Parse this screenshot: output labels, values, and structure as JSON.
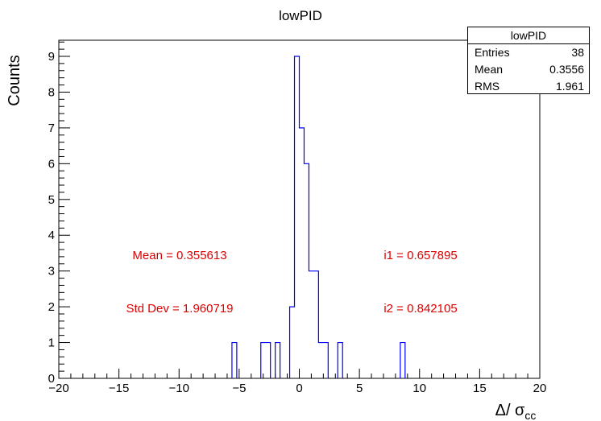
{
  "chart_data": {
    "type": "histogram",
    "title": "lowPID",
    "xlabel": "Δ/ σ",
    "xlabel_subscript": "cc",
    "ylabel": "Counts",
    "xlim": [
      -20,
      20
    ],
    "ylim": [
      0,
      9.45
    ],
    "x_ticks": [
      -20,
      -15,
      -10,
      -5,
      0,
      5,
      10,
      15,
      20
    ],
    "x_tick_labels": [
      "−20",
      "−15",
      "−10",
      "−5",
      "0",
      "5",
      "10",
      "15",
      "20"
    ],
    "y_ticks": [
      0,
      1,
      2,
      3,
      4,
      5,
      6,
      7,
      8,
      9
    ],
    "y_tick_labels": [
      "0",
      "1",
      "2",
      "3",
      "4",
      "5",
      "6",
      "7",
      "8",
      "9"
    ],
    "bin_width": 0.4,
    "bins": [
      {
        "x0": -5.6,
        "count": 1
      },
      {
        "x0": -3.2,
        "count": 1
      },
      {
        "x0": -2.8,
        "count": 1
      },
      {
        "x0": -2.0,
        "count": 1
      },
      {
        "x0": -0.8,
        "count": 2
      },
      {
        "x0": -0.4,
        "count": 9
      },
      {
        "x0": 0.0,
        "count": 7
      },
      {
        "x0": 0.4,
        "count": 6
      },
      {
        "x0": 0.8,
        "count": 3
      },
      {
        "x0": 1.2,
        "count": 3
      },
      {
        "x0": 1.6,
        "count": 1
      },
      {
        "x0": 2.0,
        "count": 1
      },
      {
        "x0": 3.2,
        "count": 1
      },
      {
        "x0": 8.4,
        "count": 1
      }
    ],
    "line_color": "#0000ff",
    "annotations": {
      "mean": "Mean = 0.355613",
      "std": "Std Dev = 1.960719",
      "i1": "i1 = 0.657895",
      "i2": "i2 = 0.842105",
      "color": "#dd0000"
    },
    "stats_box": {
      "title": "lowPID",
      "rows": [
        {
          "label": "Entries",
          "value": "38"
        },
        {
          "label": "Mean",
          "value": "0.3556"
        },
        {
          "label": "RMS",
          "value": "1.961"
        }
      ]
    }
  }
}
